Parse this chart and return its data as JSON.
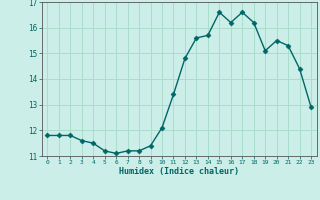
{
  "x": [
    0,
    1,
    2,
    3,
    4,
    5,
    6,
    7,
    8,
    9,
    10,
    11,
    12,
    13,
    14,
    15,
    16,
    17,
    18,
    19,
    20,
    21,
    22,
    23
  ],
  "y": [
    11.8,
    11.8,
    11.8,
    11.6,
    11.5,
    11.2,
    11.1,
    11.2,
    11.2,
    11.4,
    12.1,
    13.4,
    14.8,
    15.6,
    15.7,
    16.6,
    16.2,
    16.6,
    16.2,
    15.1,
    15.5,
    15.3,
    14.4,
    12.9
  ],
  "xlabel": "Humidex (Indice chaleur)",
  "ylim": [
    11,
    17
  ],
  "xlim": [
    -0.5,
    23.5
  ],
  "yticks": [
    11,
    12,
    13,
    14,
    15,
    16,
    17
  ],
  "xticks": [
    0,
    1,
    2,
    3,
    4,
    5,
    6,
    7,
    8,
    9,
    10,
    11,
    12,
    13,
    14,
    15,
    16,
    17,
    18,
    19,
    20,
    21,
    22,
    23
  ],
  "line_color": "#006666",
  "marker": "D",
  "marker_size": 2.5,
  "bg_color": "#cceee8",
  "grid_color": "#aaddcc",
  "label_color": "#006666",
  "tick_label_color": "#006666"
}
